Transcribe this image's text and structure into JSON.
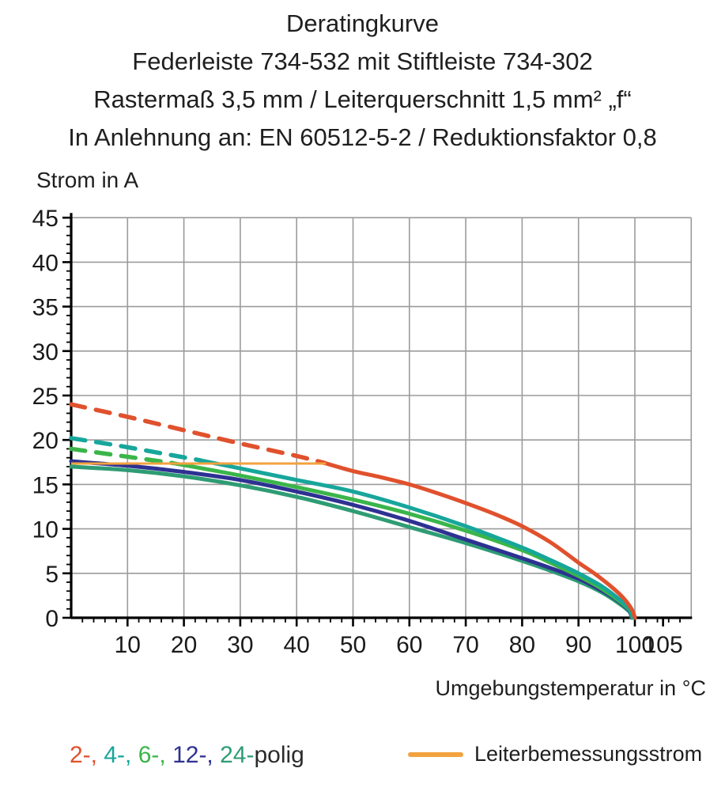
{
  "chart_data": {
    "type": "line",
    "title": "Deratingkurve",
    "subtitle1": "Federleiste 734-532 mit Stiftleiste 734-302",
    "subtitle2": "Rastermaß 3,5 mm / Leiterquerschnitt 1,5 mm² „f“",
    "subtitle3": "In Anlehnung an: EN 60512-5-2 / Reduktionsfaktor 0,8",
    "ylabel": "Strom in A",
    "xlabel": "Umgebungstemperatur in °C",
    "xlim": [
      0,
      110
    ],
    "ylim": [
      0,
      45
    ],
    "x_major_ticks": [
      10,
      20,
      30,
      40,
      50,
      60,
      70,
      80,
      90,
      100,
      105
    ],
    "x_minor_step": 2,
    "y_major_ticks": [
      0,
      5,
      10,
      15,
      20,
      25,
      30,
      35,
      40,
      45
    ],
    "y_minor_step": 1,
    "grid_color": "#9b9b9b",
    "axis_color": "#000000",
    "series": [
      {
        "name": "24-polig",
        "color": "#2E9C74",
        "dashed": [],
        "solid": [
          [
            0,
            17.0
          ],
          [
            10,
            16.6
          ],
          [
            20,
            15.9
          ],
          [
            30,
            14.9
          ],
          [
            40,
            13.6
          ],
          [
            50,
            12.0
          ],
          [
            60,
            10.2
          ],
          [
            70,
            8.4
          ],
          [
            80,
            6.4
          ],
          [
            85,
            5.3
          ],
          [
            90,
            4.1
          ],
          [
            94,
            2.9
          ],
          [
            97,
            1.7
          ],
          [
            99,
            0.7
          ],
          [
            99.4,
            0
          ]
        ]
      },
      {
        "name": "12-polig",
        "color": "#2E3192",
        "dashed": [],
        "solid": [
          [
            0,
            17.6
          ],
          [
            10,
            17.1
          ],
          [
            20,
            16.4
          ],
          [
            30,
            15.5
          ],
          [
            40,
            14.2
          ],
          [
            50,
            12.7
          ],
          [
            60,
            10.9
          ],
          [
            70,
            8.8
          ],
          [
            80,
            6.7
          ],
          [
            85,
            5.6
          ],
          [
            90,
            4.4
          ],
          [
            94,
            3.1
          ],
          [
            97,
            1.9
          ],
          [
            99,
            0.8
          ],
          [
            99.5,
            0
          ]
        ]
      },
      {
        "name": "6-polig",
        "color": "#3BB54A",
        "dashed": [
          [
            0,
            19.0
          ],
          [
            9,
            18.2
          ],
          [
            18,
            17.4
          ]
        ],
        "solid": [
          [
            18,
            17.4
          ],
          [
            25,
            16.6
          ],
          [
            30,
            16.0
          ],
          [
            40,
            14.7
          ],
          [
            50,
            13.3
          ],
          [
            60,
            11.7
          ],
          [
            70,
            9.8
          ],
          [
            80,
            7.6
          ],
          [
            85,
            6.2
          ],
          [
            90,
            4.7
          ],
          [
            94,
            3.3
          ],
          [
            97,
            2.0
          ],
          [
            99,
            0.9
          ],
          [
            99.6,
            0
          ]
        ]
      },
      {
        "name": "4-polig",
        "color": "#17A69B",
        "dashed": [
          [
            0,
            20.2
          ],
          [
            8,
            19.4
          ],
          [
            16,
            18.5
          ],
          [
            23,
            17.7
          ]
        ],
        "solid": [
          [
            23,
            17.7
          ],
          [
            30,
            16.8
          ],
          [
            40,
            15.5
          ],
          [
            50,
            14.2
          ],
          [
            60,
            12.4
          ],
          [
            70,
            10.3
          ],
          [
            80,
            7.9
          ],
          [
            85,
            6.5
          ],
          [
            90,
            5.0
          ],
          [
            94,
            3.6
          ],
          [
            97,
            2.2
          ],
          [
            99,
            1.0
          ],
          [
            99.7,
            0
          ]
        ]
      },
      {
        "name": "2-polig",
        "color": "#E0512D",
        "dashed": [
          [
            0,
            24.0
          ],
          [
            10,
            22.6
          ],
          [
            20,
            21.1
          ],
          [
            30,
            19.6
          ],
          [
            40,
            18.2
          ],
          [
            45,
            17.4
          ]
        ],
        "solid": [
          [
            45,
            17.4
          ],
          [
            50,
            16.5
          ],
          [
            55,
            15.8
          ],
          [
            60,
            15.0
          ],
          [
            65,
            14.0
          ],
          [
            70,
            12.9
          ],
          [
            75,
            11.7
          ],
          [
            80,
            10.3
          ],
          [
            85,
            8.5
          ],
          [
            90,
            6.2
          ],
          [
            93,
            4.9
          ],
          [
            96,
            3.4
          ],
          [
            98,
            2.2
          ],
          [
            99.5,
            0.9
          ],
          [
            100,
            0
          ]
        ]
      }
    ],
    "rated_line": {
      "label": "Leiterbemessungsstrom",
      "color": "#F2A23F",
      "value_a": 17.35,
      "points": [
        [
          0,
          17.35
        ],
        [
          45.2,
          17.35
        ]
      ]
    }
  },
  "legend": {
    "pole_parts": [
      {
        "text": "2-,",
        "color": "#E0512D"
      },
      {
        "text": " 4-,",
        "color": "#17A69B"
      },
      {
        "text": " 6-,",
        "color": "#3BB54A"
      },
      {
        "text": " 12-,",
        "color": "#2E3192"
      },
      {
        "text": " 24-",
        "color": "#2E9C74"
      },
      {
        "text": "polig",
        "color": "#2B2B2B"
      }
    ]
  }
}
